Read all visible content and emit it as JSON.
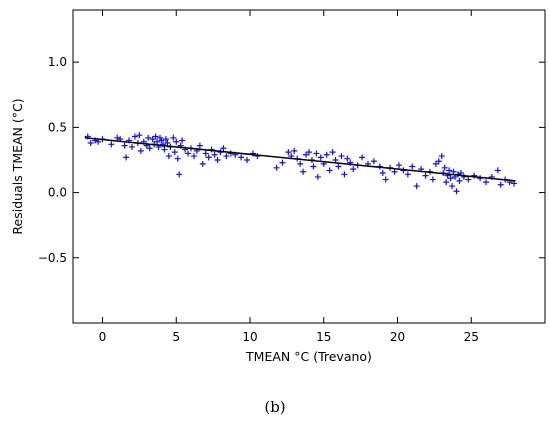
{
  "chart_data": {
    "type": "scatter",
    "xlabel": "TMEAN °C (Trevano)",
    "ylabel": "Residuals TMEAN (°C)",
    "xlim": [
      -2,
      30
    ],
    "ylim": [
      -1.0,
      1.4
    ],
    "x_ticks": [
      0,
      5,
      10,
      15,
      20,
      25
    ],
    "x_tick_labels": [
      "0",
      "5",
      "10",
      "15",
      "20",
      "25"
    ],
    "y_ticks": [
      -0.5,
      0.0,
      0.5,
      1.0
    ],
    "y_tick_labels": [
      "−0.5",
      "0.0",
      "0.5",
      "1.0"
    ],
    "grid": false,
    "marker_color": "#1010ee",
    "line_color": "#000000",
    "fit_line": {
      "x": [
        -1.2,
        28.0
      ],
      "y": [
        0.42,
        0.09
      ]
    },
    "points": [
      {
        "x": -1.0,
        "y": 0.43
      },
      {
        "x": -0.8,
        "y": 0.38
      },
      {
        "x": -0.5,
        "y": 0.4
      },
      {
        "x": -0.3,
        "y": 0.39
      },
      {
        "x": 0.0,
        "y": 0.41
      },
      {
        "x": 0.6,
        "y": 0.37
      },
      {
        "x": 1.0,
        "y": 0.42
      },
      {
        "x": 1.2,
        "y": 0.41
      },
      {
        "x": 1.5,
        "y": 0.36
      },
      {
        "x": 1.6,
        "y": 0.27
      },
      {
        "x": 1.8,
        "y": 0.4
      },
      {
        "x": 2.0,
        "y": 0.35
      },
      {
        "x": 2.2,
        "y": 0.43
      },
      {
        "x": 2.4,
        "y": 0.38
      },
      {
        "x": 2.5,
        "y": 0.44
      },
      {
        "x": 2.6,
        "y": 0.32
      },
      {
        "x": 2.8,
        "y": 0.39
      },
      {
        "x": 3.0,
        "y": 0.36
      },
      {
        "x": 3.1,
        "y": 0.42
      },
      {
        "x": 3.2,
        "y": 0.34
      },
      {
        "x": 3.4,
        "y": 0.41
      },
      {
        "x": 3.5,
        "y": 0.37
      },
      {
        "x": 3.6,
        "y": 0.43
      },
      {
        "x": 3.7,
        "y": 0.39
      },
      {
        "x": 3.8,
        "y": 0.35
      },
      {
        "x": 3.9,
        "y": 0.42
      },
      {
        "x": 4.0,
        "y": 0.4
      },
      {
        "x": 4.1,
        "y": 0.37
      },
      {
        "x": 4.2,
        "y": 0.33
      },
      {
        "x": 4.3,
        "y": 0.41
      },
      {
        "x": 4.4,
        "y": 0.38
      },
      {
        "x": 4.5,
        "y": 0.28
      },
      {
        "x": 4.6,
        "y": 0.35
      },
      {
        "x": 4.8,
        "y": 0.42
      },
      {
        "x": 4.9,
        "y": 0.31
      },
      {
        "x": 5.0,
        "y": 0.39
      },
      {
        "x": 5.1,
        "y": 0.26
      },
      {
        "x": 5.2,
        "y": 0.14
      },
      {
        "x": 5.3,
        "y": 0.36
      },
      {
        "x": 5.4,
        "y": 0.4
      },
      {
        "x": 5.6,
        "y": 0.33
      },
      {
        "x": 5.8,
        "y": 0.3
      },
      {
        "x": 6.0,
        "y": 0.34
      },
      {
        "x": 6.2,
        "y": 0.28
      },
      {
        "x": 6.4,
        "y": 0.32
      },
      {
        "x": 6.6,
        "y": 0.36
      },
      {
        "x": 6.8,
        "y": 0.22
      },
      {
        "x": 7.0,
        "y": 0.3
      },
      {
        "x": 7.2,
        "y": 0.27
      },
      {
        "x": 7.4,
        "y": 0.33
      },
      {
        "x": 7.6,
        "y": 0.29
      },
      {
        "x": 7.8,
        "y": 0.25
      },
      {
        "x": 8.0,
        "y": 0.31
      },
      {
        "x": 8.2,
        "y": 0.34
      },
      {
        "x": 8.4,
        "y": 0.28
      },
      {
        "x": 8.7,
        "y": 0.3
      },
      {
        "x": 9.0,
        "y": 0.29
      },
      {
        "x": 9.4,
        "y": 0.27
      },
      {
        "x": 9.8,
        "y": 0.25
      },
      {
        "x": 10.2,
        "y": 0.3
      },
      {
        "x": 10.5,
        "y": 0.28
      },
      {
        "x": 11.8,
        "y": 0.19
      },
      {
        "x": 12.2,
        "y": 0.23
      },
      {
        "x": 12.6,
        "y": 0.31
      },
      {
        "x": 12.8,
        "y": 0.28
      },
      {
        "x": 13.0,
        "y": 0.32
      },
      {
        "x": 13.2,
        "y": 0.26
      },
      {
        "x": 13.4,
        "y": 0.22
      },
      {
        "x": 13.6,
        "y": 0.16
      },
      {
        "x": 13.8,
        "y": 0.29
      },
      {
        "x": 14.0,
        "y": 0.31
      },
      {
        "x": 14.2,
        "y": 0.25
      },
      {
        "x": 14.3,
        "y": 0.2
      },
      {
        "x": 14.5,
        "y": 0.3
      },
      {
        "x": 14.6,
        "y": 0.12
      },
      {
        "x": 14.8,
        "y": 0.27
      },
      {
        "x": 15.0,
        "y": 0.22
      },
      {
        "x": 15.2,
        "y": 0.29
      },
      {
        "x": 15.4,
        "y": 0.17
      },
      {
        "x": 15.6,
        "y": 0.31
      },
      {
        "x": 15.8,
        "y": 0.25
      },
      {
        "x": 16.0,
        "y": 0.2
      },
      {
        "x": 16.2,
        "y": 0.28
      },
      {
        "x": 16.4,
        "y": 0.14
      },
      {
        "x": 16.6,
        "y": 0.26
      },
      {
        "x": 16.8,
        "y": 0.23
      },
      {
        "x": 17.0,
        "y": 0.18
      },
      {
        "x": 17.3,
        "y": 0.21
      },
      {
        "x": 17.6,
        "y": 0.27
      },
      {
        "x": 18.0,
        "y": 0.22
      },
      {
        "x": 18.4,
        "y": 0.24
      },
      {
        "x": 18.8,
        "y": 0.2
      },
      {
        "x": 19.0,
        "y": 0.15
      },
      {
        "x": 19.2,
        "y": 0.1
      },
      {
        "x": 19.5,
        "y": 0.19
      },
      {
        "x": 19.8,
        "y": 0.16
      },
      {
        "x": 20.1,
        "y": 0.21
      },
      {
        "x": 20.4,
        "y": 0.17
      },
      {
        "x": 20.7,
        "y": 0.14
      },
      {
        "x": 21.0,
        "y": 0.2
      },
      {
        "x": 21.3,
        "y": 0.05
      },
      {
        "x": 21.6,
        "y": 0.18
      },
      {
        "x": 21.9,
        "y": 0.13
      },
      {
        "x": 22.2,
        "y": 0.16
      },
      {
        "x": 22.4,
        "y": 0.1
      },
      {
        "x": 22.6,
        "y": 0.22
      },
      {
        "x": 22.8,
        "y": 0.24
      },
      {
        "x": 23.0,
        "y": 0.28
      },
      {
        "x": 23.1,
        "y": 0.15
      },
      {
        "x": 23.2,
        "y": 0.19
      },
      {
        "x": 23.3,
        "y": 0.08
      },
      {
        "x": 23.4,
        "y": 0.13
      },
      {
        "x": 23.5,
        "y": 0.17
      },
      {
        "x": 23.6,
        "y": 0.11
      },
      {
        "x": 23.7,
        "y": 0.05
      },
      {
        "x": 23.8,
        "y": 0.16
      },
      {
        "x": 23.9,
        "y": 0.12
      },
      {
        "x": 24.0,
        "y": 0.01
      },
      {
        "x": 24.1,
        "y": 0.14
      },
      {
        "x": 24.2,
        "y": 0.09
      },
      {
        "x": 24.3,
        "y": 0.15
      },
      {
        "x": 24.5,
        "y": 0.12
      },
      {
        "x": 24.8,
        "y": 0.1
      },
      {
        "x": 25.2,
        "y": 0.13
      },
      {
        "x": 25.6,
        "y": 0.11
      },
      {
        "x": 26.0,
        "y": 0.08
      },
      {
        "x": 26.4,
        "y": 0.12
      },
      {
        "x": 26.8,
        "y": 0.17
      },
      {
        "x": 27.0,
        "y": 0.06
      },
      {
        "x": 27.3,
        "y": 0.1
      },
      {
        "x": 27.6,
        "y": 0.08
      },
      {
        "x": 27.9,
        "y": 0.07
      }
    ]
  },
  "caption": "(b)"
}
